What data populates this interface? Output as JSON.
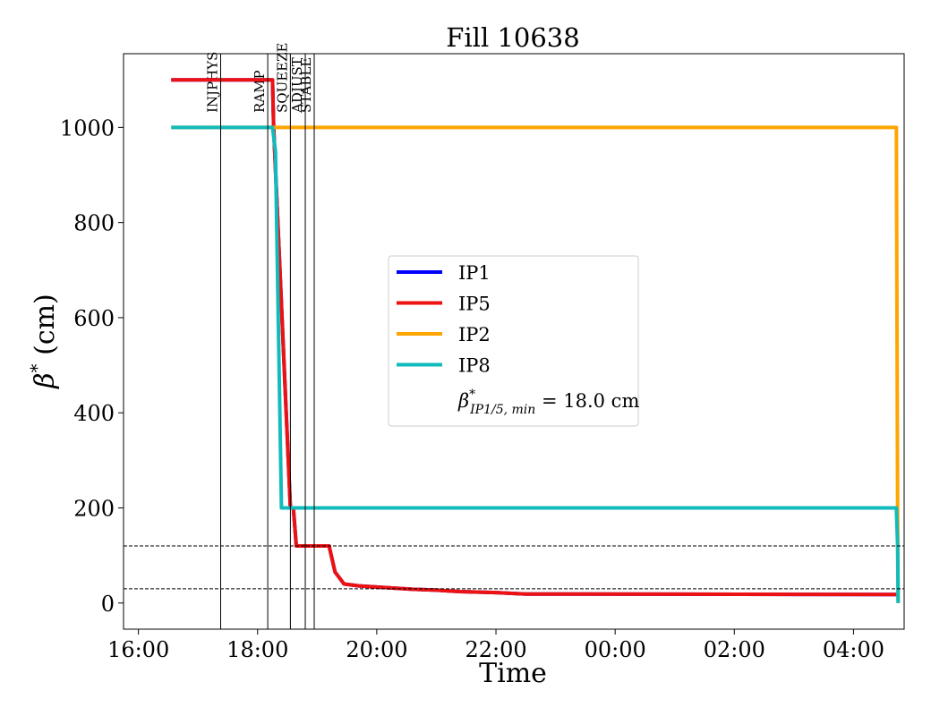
{
  "chart_data": {
    "type": "line",
    "title": "Fill 10638",
    "xlabel": "Time",
    "ylabel_base": "β",
    "ylabel_sup": "*",
    "ylabel_unit": "(cm)",
    "x_unit": "hours since 16:00 (day 1)",
    "xlim": [
      -0.25,
      12.85
    ],
    "ylim": [
      -55,
      1155
    ],
    "x_ticks": [
      {
        "value": 0,
        "label": "16:00"
      },
      {
        "value": 2,
        "label": "18:00"
      },
      {
        "value": 4,
        "label": "20:00"
      },
      {
        "value": 6,
        "label": "22:00"
      },
      {
        "value": 8,
        "label": "00:00"
      },
      {
        "value": 10,
        "label": "02:00"
      },
      {
        "value": 12,
        "label": "04:00"
      }
    ],
    "y_ticks": [
      0,
      200,
      400,
      600,
      800,
      1000
    ],
    "grid": false,
    "legend_position": "center",
    "series": [
      {
        "name": "IP1",
        "color": "#0000ff",
        "x": [
          0.55,
          2.25,
          2.27,
          2.55,
          2.6,
          2.65,
          3.2,
          3.3,
          3.45,
          3.7,
          4.2,
          4.6,
          5.0,
          5.4,
          6.0,
          6.5,
          12.72,
          12.74
        ],
        "y": [
          1100,
          1100,
          1000,
          200,
          200,
          120,
          120,
          65,
          40,
          36,
          32,
          29,
          27,
          24,
          22,
          19,
          18,
          18
        ]
      },
      {
        "name": "IP5",
        "color": "#ee1111",
        "x": [
          0.55,
          2.25,
          2.27,
          2.55,
          2.6,
          2.65,
          3.2,
          3.3,
          3.45,
          3.7,
          4.2,
          4.6,
          5.0,
          5.4,
          6.0,
          6.5,
          12.72,
          12.74
        ],
        "y": [
          1100,
          1100,
          1000,
          200,
          200,
          120,
          120,
          65,
          40,
          36,
          32,
          29,
          27,
          24,
          22,
          19,
          18,
          18
        ]
      },
      {
        "name": "IP2",
        "color": "#ffa500",
        "x": [
          0.55,
          2.25,
          12.72,
          12.74,
          12.75
        ],
        "y": [
          1000,
          1000,
          1000,
          200,
          0
        ]
      },
      {
        "name": "IP8",
        "color": "#11bbbb",
        "x": [
          0.55,
          2.25,
          2.3,
          2.4,
          2.6,
          12.72,
          12.74,
          12.75
        ],
        "y": [
          1000,
          1000,
          950,
          200,
          200,
          200,
          120,
          0
        ]
      }
    ],
    "phases": [
      {
        "label": "INJPHYS",
        "x": 1.38
      },
      {
        "label": "RAMP",
        "x": 2.17
      },
      {
        "label": "SQUEEZE",
        "x": 2.55
      },
      {
        "label": "ADJUST",
        "x": 2.8
      },
      {
        "label": "STABLE",
        "x": 2.95
      }
    ],
    "hlines": [
      120,
      30
    ],
    "legend_extra": {
      "base": "β",
      "sup": "*",
      "sub": "IP1/5, min",
      "value": " = 18.0 cm"
    }
  }
}
